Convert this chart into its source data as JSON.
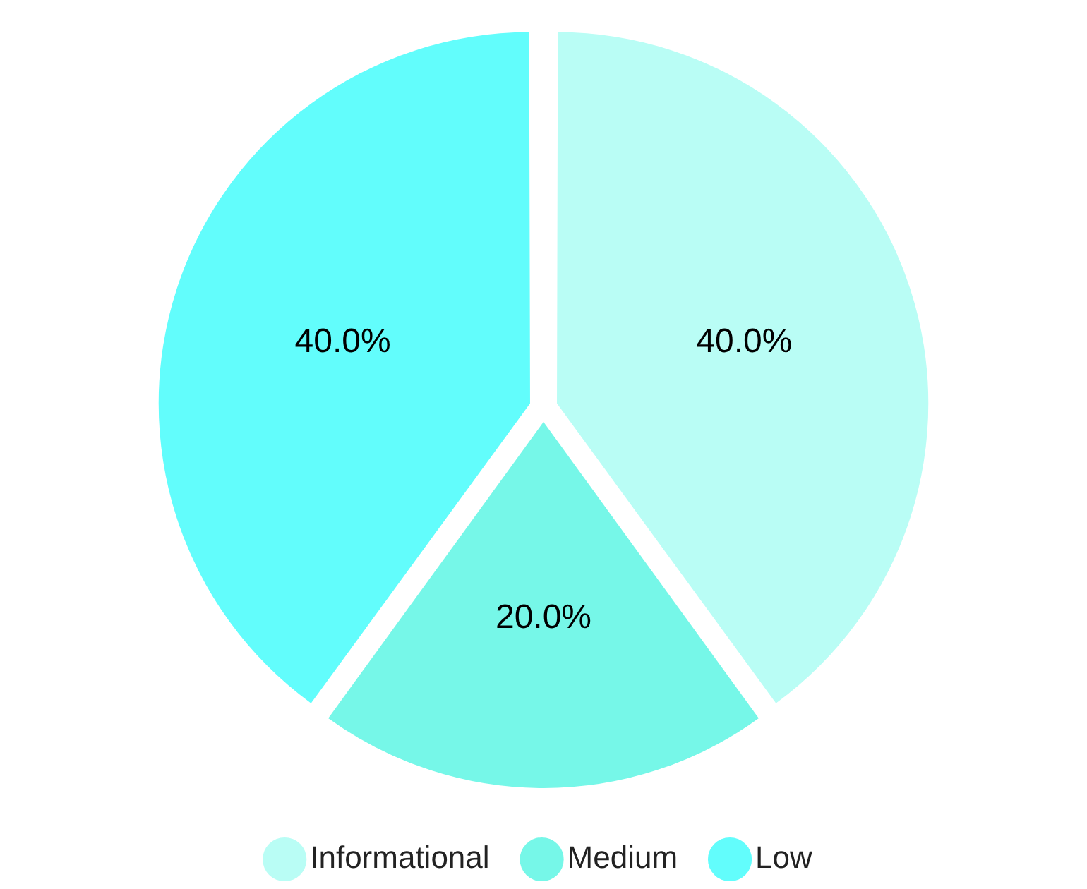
{
  "chart_data": {
    "type": "pie",
    "categories": [
      "Informational",
      "Medium",
      "Low"
    ],
    "values": [
      40,
      20,
      40
    ],
    "colors": [
      "#b9fdf5",
      "#76f7e8",
      "#62fdfc"
    ],
    "value_labels": [
      "40.0%",
      "20.0%",
      "40.0%"
    ],
    "legend": "bottom"
  }
}
